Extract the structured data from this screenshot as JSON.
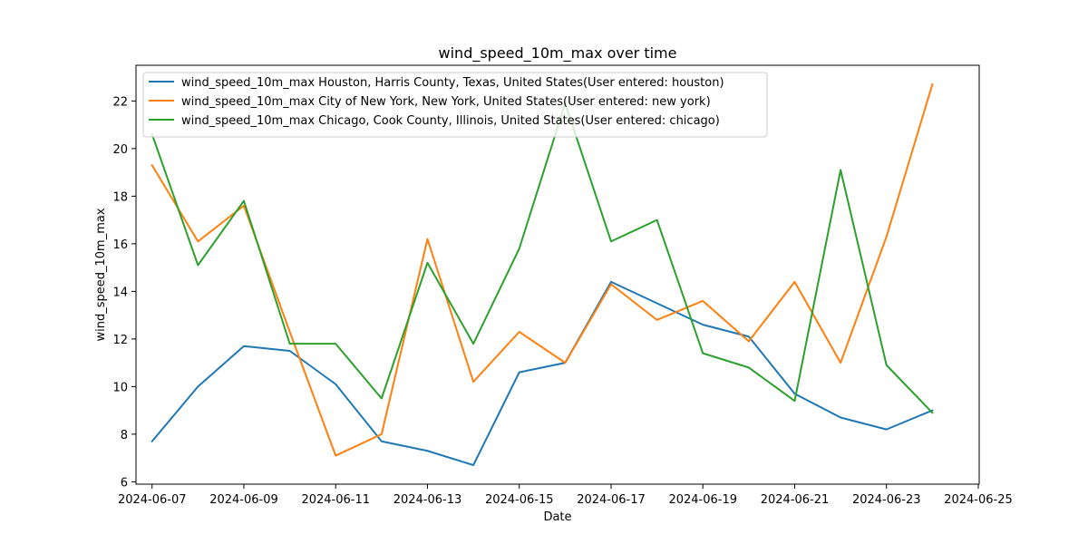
{
  "chart_data": {
    "type": "line",
    "title": "wind_speed_10m_max over time",
    "xlabel": "Date",
    "ylabel": "wind_speed_10m_max",
    "x": [
      "2024-06-07",
      "2024-06-08",
      "2024-06-09",
      "2024-06-10",
      "2024-06-11",
      "2024-06-12",
      "2024-06-13",
      "2024-06-14",
      "2024-06-15",
      "2024-06-16",
      "2024-06-17",
      "2024-06-18",
      "2024-06-19",
      "2024-06-20",
      "2024-06-21",
      "2024-06-22",
      "2024-06-23",
      "2024-06-24"
    ],
    "xticks": [
      "2024-06-07",
      "2024-06-09",
      "2024-06-11",
      "2024-06-13",
      "2024-06-15",
      "2024-06-17",
      "2024-06-19",
      "2024-06-21",
      "2024-06-23",
      "2024-06-25"
    ],
    "xlim": [
      "2024-06-06.65",
      "2024-06-25.02"
    ],
    "yticks": [
      6,
      8,
      10,
      12,
      14,
      16,
      18,
      20,
      22
    ],
    "ylim": [
      5.9,
      23.5
    ],
    "grid": false,
    "legend_position": "top-left",
    "series": [
      {
        "name": "wind_speed_10m_max Houston, Harris County, Texas, United States(User entered: houston)",
        "color": "#1f77b4",
        "values": [
          7.7,
          10.0,
          11.7,
          11.5,
          10.1,
          7.7,
          7.3,
          6.7,
          10.6,
          11.0,
          14.4,
          13.5,
          12.6,
          12.1,
          9.7,
          8.7,
          8.2,
          9.0
        ]
      },
      {
        "name": "wind_speed_10m_max City of New York, New York, United States(User entered: new york)",
        "color": "#ff7f0e",
        "values": [
          19.3,
          16.1,
          17.6,
          12.3,
          7.1,
          8.0,
          16.2,
          10.2,
          12.3,
          11.0,
          14.3,
          12.8,
          13.6,
          11.9,
          14.4,
          11.0,
          16.3,
          22.7
        ]
      },
      {
        "name": "wind_speed_10m_max Chicago, Cook County, Illinois, United States(User entered: chicago)",
        "color": "#2ca02c",
        "values": [
          20.6,
          15.1,
          17.8,
          11.8,
          11.8,
          9.5,
          15.2,
          11.8,
          15.8,
          21.9,
          16.1,
          17.0,
          11.4,
          10.8,
          9.4,
          19.1,
          10.9,
          8.9
        ]
      }
    ]
  }
}
